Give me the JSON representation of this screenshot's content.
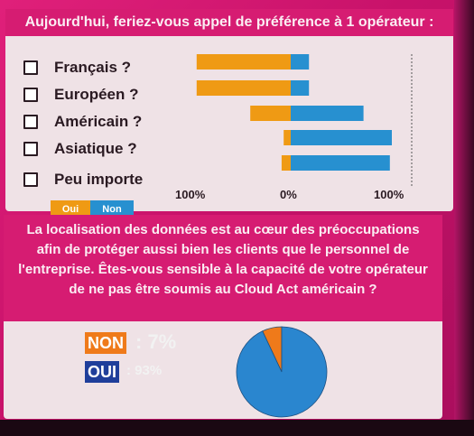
{
  "panel1": {
    "title": "Aujourd'hui, feriez-vous appel de préférence à 1 opérateur :",
    "options": [
      "Français ?",
      "Européen ?",
      "Américain ?",
      "Asiatique ?",
      "Peu importe"
    ],
    "legend": {
      "oui": "Oui",
      "non": "Non"
    },
    "ticks": [
      "100%",
      "0%",
      "100%"
    ]
  },
  "panel2": {
    "question": "La localisation des données est au cœur des préoccupations afin de protéger aussi bien les clients que le personnel de l'entreprise. Êtes-vous sensible à la capacité de votre opérateur de ne pas être soumis au Cloud Act américain ?",
    "non_label": "NON",
    "non_value": ": 7%",
    "oui_label": "OUI",
    "oui_value": ": 93%"
  },
  "colors": {
    "oui": "#ef9a14",
    "non": "#2790d0",
    "pie_non": "#ef7a1a",
    "pie_oui": "#2a86cf"
  },
  "chart_data": [
    {
      "type": "bar",
      "title": "Aujourd'hui, feriez-vous appel de préférence à 1 opérateur :",
      "categories": [
        "Français ?",
        "Européen ?",
        "Américain ?",
        "Asiatique ?",
        "Peu importe"
      ],
      "series": [
        {
          "name": "Oui",
          "values": [
            -93,
            -93,
            -40,
            -7,
            -9
          ]
        },
        {
          "name": "Non",
          "values": [
            18,
            18,
            72,
            100,
            98
          ]
        }
      ],
      "xlim": [
        -100,
        100
      ],
      "tick_labels": [
        "100%",
        "0%",
        "100%"
      ],
      "legend": "bottom-left"
    },
    {
      "type": "pie",
      "categories": [
        "NON",
        "OUI"
      ],
      "values": [
        7,
        93
      ]
    }
  ]
}
